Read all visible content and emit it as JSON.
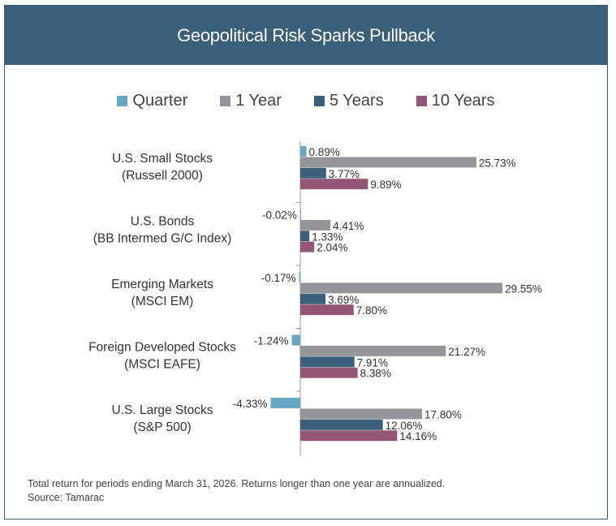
{
  "chart_data": {
    "type": "bar",
    "orientation": "horizontal",
    "title": "Geopolitical Risk Sparks Pullback",
    "categories": [
      [
        "U.S. Small Stocks",
        "(Russell 2000)"
      ],
      [
        "U.S. Bonds",
        "(BB Intermed G/C Index)"
      ],
      [
        "Emerging Markets",
        "(MSCI EM)"
      ],
      [
        "Foreign Developed Stocks",
        "(MSCI EAFE)"
      ],
      [
        "U.S. Large Stocks",
        "(S&P 500)"
      ]
    ],
    "series": [
      {
        "name": "Quarter",
        "color": "#67a7c3",
        "values": [
          0.89,
          -0.02,
          -0.17,
          -1.24,
          -4.33
        ],
        "labels": [
          "0.89%",
          "-0.02%",
          "-0.17%",
          "-1.24%",
          "-4.33%"
        ]
      },
      {
        "name": "1 Year",
        "color": "#939598",
        "values": [
          25.73,
          4.41,
          29.55,
          21.27,
          17.8
        ],
        "labels": [
          "25.73%",
          "4.41%",
          "29.55%",
          "21.27%",
          "17.80%"
        ]
      },
      {
        "name": "5 Years",
        "color": "#3a6079",
        "values": [
          3.77,
          1.33,
          3.69,
          7.91,
          12.06
        ],
        "labels": [
          "3.77%",
          "1.33%",
          "3.69%",
          "7.91%",
          "12.06%"
        ]
      },
      {
        "name": "10 Years",
        "color": "#935775",
        "values": [
          9.89,
          2.04,
          7.8,
          8.38,
          14.16
        ],
        "labels": [
          "9.89%",
          "2.04%",
          "7.80%",
          "8.38%",
          "14.16%"
        ]
      }
    ],
    "xlabel": "",
    "ylabel": "",
    "legend": "top-center",
    "grid": false
  },
  "footer": {
    "note": "Total return for periods ending March 31, 2026. Returns longer than one year are annualized.",
    "source": "Source: Tamarac"
  }
}
